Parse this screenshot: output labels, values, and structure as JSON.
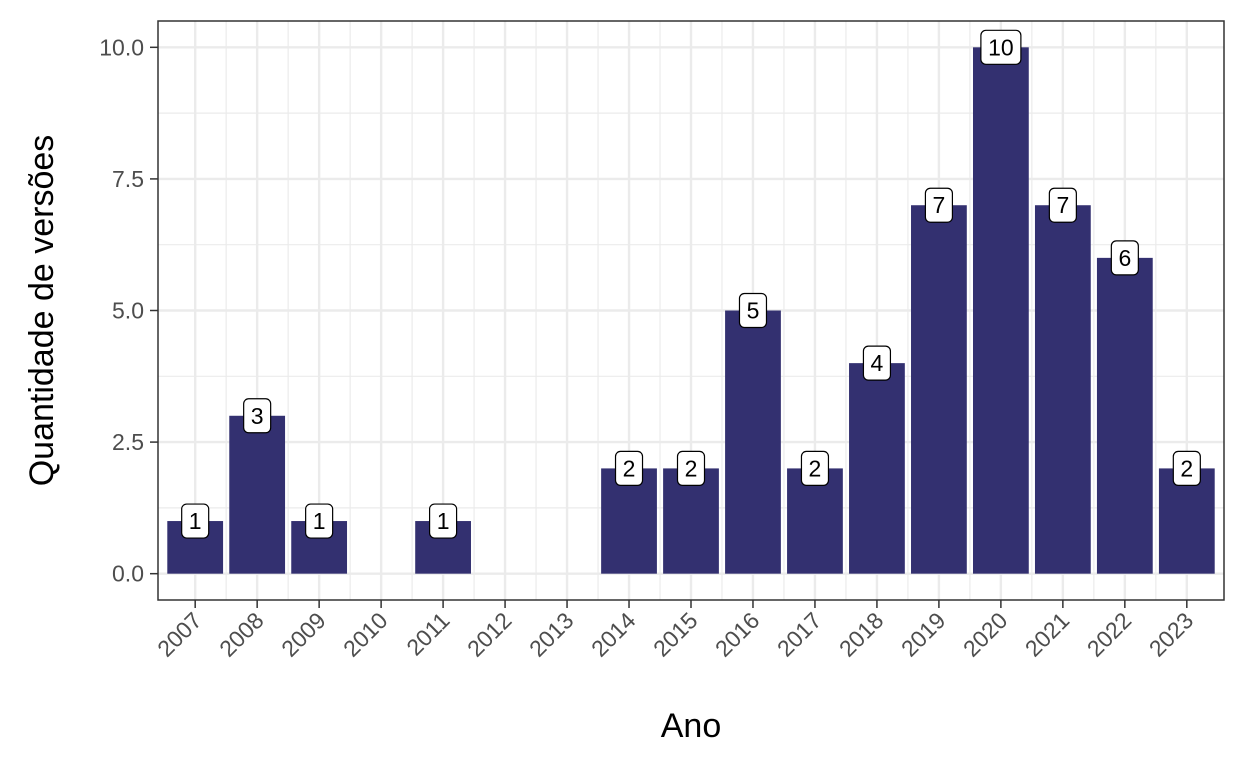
{
  "chart_data": {
    "type": "bar",
    "title": "",
    "xlabel": "Ano",
    "ylabel": "Quantidade de versões",
    "categories": [
      "2007",
      "2008",
      "2009",
      "2010",
      "2011",
      "2012",
      "2013",
      "2014",
      "2015",
      "2016",
      "2017",
      "2018",
      "2019",
      "2020",
      "2021",
      "2022",
      "2023"
    ],
    "values": [
      1,
      3,
      1,
      0,
      1,
      0,
      0,
      2,
      2,
      5,
      2,
      4,
      7,
      10,
      7,
      6,
      2
    ],
    "bar_labels": [
      "1",
      "3",
      "1",
      "",
      "1",
      "",
      "",
      "2",
      "2",
      "5",
      "2",
      "4",
      "7",
      "10",
      "7",
      "6",
      "2"
    ],
    "ylim": [
      -0.5,
      10.5
    ],
    "yticks": [
      0,
      2.5,
      5,
      7.5,
      10
    ],
    "ytick_labels": [
      "0.0",
      "2.5",
      "5.0",
      "7.5",
      "10.0"
    ],
    "grid": true,
    "legend": "none",
    "colors": {
      "bar": "#333070",
      "grid": "#ebebeb",
      "panel_border": "#333333",
      "label_box": "#ffffff"
    }
  }
}
